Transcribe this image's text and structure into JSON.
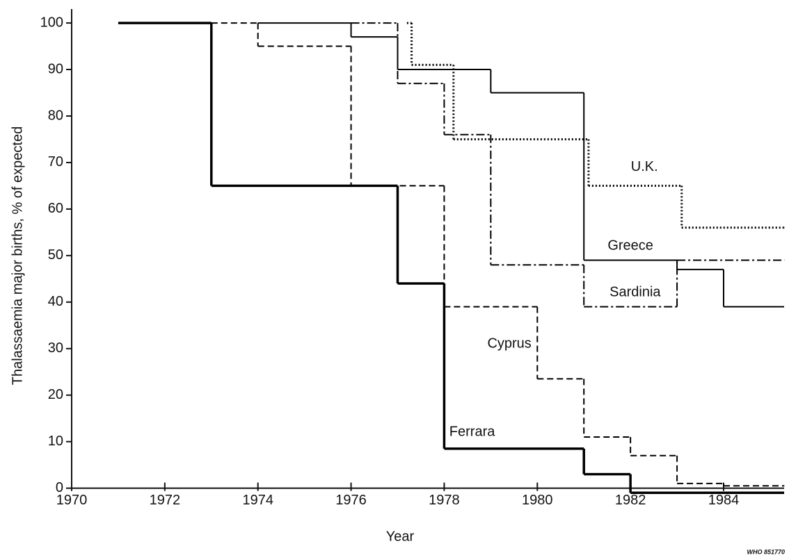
{
  "chart_data": {
    "type": "step",
    "xlabel": "Year",
    "ylabel": "Thalassaemia major births, % of expected",
    "note": "WHO 851770",
    "xlim": [
      1970,
      1985.3
    ],
    "ylim": [
      -2,
      103
    ],
    "xticks": [
      1970,
      1972,
      1974,
      1976,
      1978,
      1980,
      1982,
      1984
    ],
    "yticks": [
      0,
      10,
      20,
      30,
      40,
      50,
      60,
      70,
      80,
      90,
      100
    ],
    "series": [
      {
        "name": "Ferrara",
        "color": "#000000",
        "style": "solid",
        "width": 3.5,
        "x": [
          1971,
          1973,
          1977,
          1978,
          1981,
          1982,
          1985.3
        ],
        "values": [
          100,
          65,
          44,
          8.5,
          3,
          -1,
          -1
        ]
      },
      {
        "name": "Cyprus",
        "color": "#000000",
        "style": "dashed",
        "width": 2,
        "x": [
          1973,
          1974,
          1976,
          1978,
          1980,
          1981,
          1982,
          1983,
          1984,
          1985.3
        ],
        "values": [
          100,
          95,
          65,
          39,
          23.5,
          11,
          7,
          1,
          0.5,
          0.5
        ]
      },
      {
        "name": "Greece",
        "color": "#000000",
        "style": "solid",
        "width": 2,
        "x": [
          1974,
          1976,
          1977,
          1979,
          1981,
          1983,
          1984,
          1985.3
        ],
        "values": [
          100,
          97,
          90,
          85,
          49,
          47,
          39,
          39
        ]
      },
      {
        "name": "Sardinia",
        "color": "#000000",
        "style": "dashdot",
        "width": 2,
        "x": [
          1976,
          1977,
          1978,
          1979,
          1981,
          1983,
          1985.3
        ],
        "values": [
          100,
          87,
          76,
          48,
          39,
          49,
          49
        ]
      },
      {
        "name": "U.K.",
        "color": "#000000",
        "style": "dotted",
        "width": 3,
        "x": [
          1977.2,
          1977.3,
          1978.2,
          1981.1,
          1983.1,
          1985.3
        ],
        "values": [
          100,
          91,
          75,
          65,
          56,
          56
        ]
      }
    ]
  }
}
